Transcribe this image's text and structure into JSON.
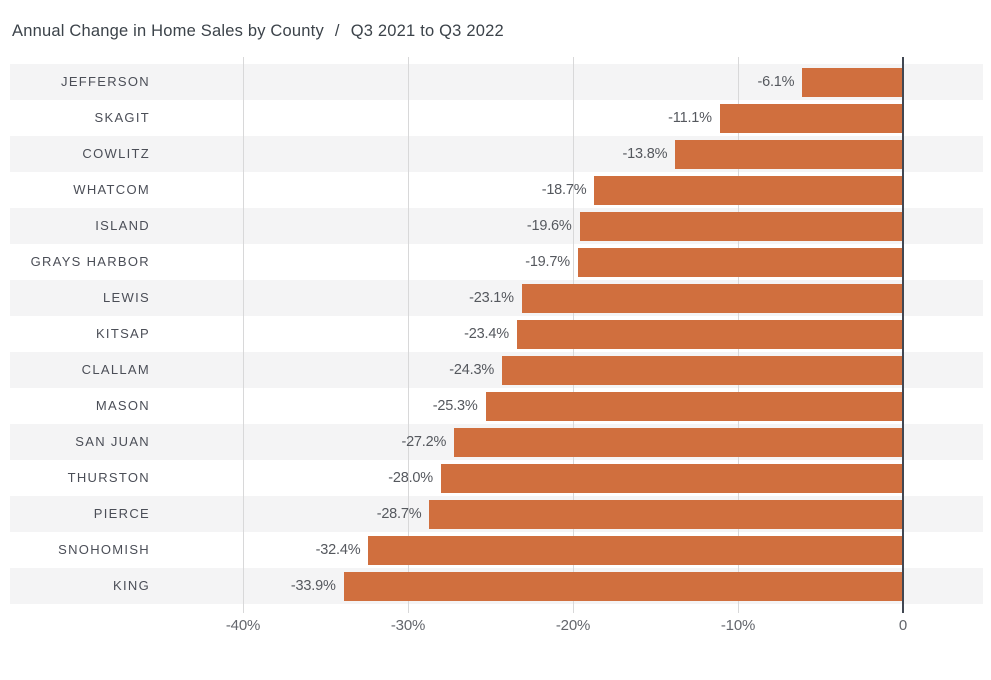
{
  "header": {
    "separator": "/"
  },
  "chart_data": {
    "type": "bar",
    "orientation": "horizontal",
    "title": "Annual Change in Home Sales by County",
    "subtitle": "Q3 2021 to Q3 2022",
    "categories": [
      "JEFFERSON",
      "SKAGIT",
      "COWLITZ",
      "WHATCOM",
      "ISLAND",
      "GRAYS HARBOR",
      "LEWIS",
      "KITSAP",
      "CLALLAM",
      "MASON",
      "SAN JUAN",
      "THURSTON",
      "PIERCE",
      "SNOHOMISH",
      "KING"
    ],
    "values": [
      -6.1,
      -11.1,
      -13.8,
      -18.7,
      -19.6,
      -19.7,
      -23.1,
      -23.4,
      -24.3,
      -25.3,
      -27.2,
      -28.0,
      -28.7,
      -32.4,
      -33.9
    ],
    "value_labels": [
      "-6.1%",
      "-11.1%",
      "-13.8%",
      "-18.7%",
      "-19.6%",
      "-19.7%",
      "-23.1%",
      "-23.4%",
      "-24.3%",
      "-25.3%",
      "-27.2%",
      "-28.0%",
      "-28.7%",
      "-32.4%",
      "-33.9%"
    ],
    "xlabel": "",
    "ylabel": "",
    "xlim": [
      -40,
      0
    ],
    "grid": "vertical",
    "legend": "none",
    "row_striping": "alternate",
    "axis_ticks": [
      {
        "label": "-40%",
        "value": -40
      },
      {
        "label": "-30%",
        "value": -30
      },
      {
        "label": "-20%",
        "value": -20
      },
      {
        "label": "-10%",
        "value": -10
      },
      {
        "label": "0",
        "value": 0
      }
    ],
    "colors": {
      "bar": "#d06f3e",
      "stripe": "#f4f4f5",
      "grid": "#d8d8d9",
      "zero": "#414752",
      "title": "#3c434a",
      "category": "#4b4e57",
      "value": "#55585e",
      "axis": "#63666c",
      "background": "#ffffff"
    }
  }
}
